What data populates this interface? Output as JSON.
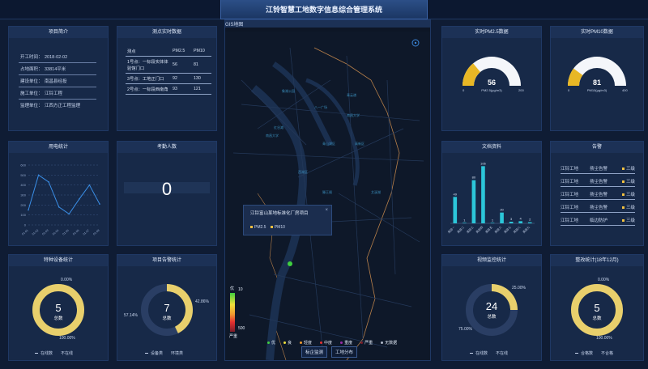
{
  "header": {
    "title": "江铃智慧工地数字信息综合管理系统"
  },
  "project_intro": {
    "title": "项目简介",
    "rows": [
      {
        "k": "开工时间：",
        "v": "2018-02-02"
      },
      {
        "k": "占地面积：",
        "v": "33814平米"
      },
      {
        "k": "建设单位：",
        "v": "南昌县经投"
      },
      {
        "k": "施工单位：",
        "v": "江铃工程"
      },
      {
        "k": "监理单位：",
        "v": "江西方正工程监理"
      }
    ]
  },
  "monitor": {
    "title": "测点实时数据",
    "head": [
      "测点",
      "PM2.5",
      "PM10"
    ],
    "rows": [
      {
        "name": "1号点：一标段实体体验馆门口",
        "pm25": "56",
        "pm10": "81"
      },
      {
        "name": "3号点：工地正门口",
        "pm25": "92",
        "pm10": "130"
      },
      {
        "name": "2号点：一标段西南角",
        "pm25": "93",
        "pm10": "121"
      }
    ]
  },
  "power": {
    "title": "用电统计",
    "ylim": [
      0,
      600
    ],
    "yticks": [
      "600",
      "500",
      "400",
      "300",
      "200",
      "100",
      "0"
    ],
    "xlabels": [
      "01-01",
      "01-02",
      "01-03",
      "01-04",
      "01-05",
      "01-06",
      "01-07",
      "01-08"
    ],
    "values": [
      150,
      500,
      430,
      180,
      110,
      260,
      400,
      210
    ]
  },
  "attendance": {
    "title": "考勤人数",
    "count": "0"
  },
  "equipment": {
    "title": "特种设备统计",
    "center_value": "5",
    "center_label": "总数",
    "pct_top": "0.00%",
    "pct_bottom": "100.00%",
    "legend": [
      "在线数",
      "不在线"
    ],
    "fraction": 1.0
  },
  "project_alarm": {
    "title": "项目告警统计",
    "center_value": "7",
    "center_label": "总数",
    "pct_right": "42.86%",
    "pct_left": "57.14%",
    "legend": [
      "设备类",
      "环境类"
    ],
    "fraction": 0.4286
  },
  "map": {
    "title": "GIS地图",
    "popup_title": "江铃富山某地标准化厂房项目",
    "popup_items": [
      "PM2.5",
      "PM10"
    ],
    "scale_top": "优",
    "scale_top_val": "10",
    "scale_bottom": "严重",
    "scale_bottom_val": "500",
    "legend": [
      {
        "label": "优",
        "color": "#3fd03f"
      },
      {
        "label": "良",
        "color": "#f0e03a"
      },
      {
        "label": "轻度",
        "color": "#f09a30"
      },
      {
        "label": "中度",
        "color": "#e53030"
      },
      {
        "label": "重度",
        "color": "#9a2ba8"
      },
      {
        "label": "严重",
        "color": "#7a1d2a"
      },
      {
        "label": "无数据",
        "color": "#b0b8c8"
      }
    ],
    "tabs": [
      "标企监测",
      "工地分布"
    ]
  },
  "pm25": {
    "title": "实时PM2.5数据",
    "value": "56",
    "unit": "PM2.5(μg/m3)",
    "min": "0",
    "max": "200",
    "fraction": 0.28
  },
  "pm10": {
    "title": "实时PM10数据",
    "value": "81",
    "unit": "PM10(μg/m3)",
    "min": "0",
    "max": "400",
    "fraction": 0.2025
  },
  "documents": {
    "title": "文档资料",
    "categories": [
      "类目一",
      "类目二",
      "类目三",
      "类目四",
      "类目五",
      "类目六",
      "类目七",
      "类目八",
      "类目九"
    ],
    "values": [
      49,
      1,
      80,
      106,
      1,
      20,
      3,
      4,
      2
    ],
    "ylim": [
      0,
      120
    ]
  },
  "alarms": {
    "title": "告警",
    "rows": [
      {
        "site": "江铃工地",
        "type": "扬尘告警",
        "level": "三级"
      },
      {
        "site": "江铃工地",
        "type": "扬尘告警",
        "level": "三级"
      },
      {
        "site": "江铃工地",
        "type": "扬尘告警",
        "level": "三级"
      },
      {
        "site": "江铃工地",
        "type": "扬尘告警",
        "level": "三级"
      },
      {
        "site": "江铃工地",
        "type": "临边防护",
        "level": "三级"
      }
    ]
  },
  "video": {
    "title": "视频监控统计",
    "center_value": "24",
    "center_label": "总数",
    "pct_right": "25.00%",
    "pct_left": "75.00%",
    "legend": [
      "在线数",
      "不在线"
    ],
    "fraction": 0.25
  },
  "rectify": {
    "title": "整改统计(18年12月)",
    "center_value": "5",
    "center_label": "总数",
    "pct_top": "0.00%",
    "pct_bottom": "100.00%",
    "legend": [
      "合格数",
      "不合格"
    ],
    "fraction": 1.0
  }
}
